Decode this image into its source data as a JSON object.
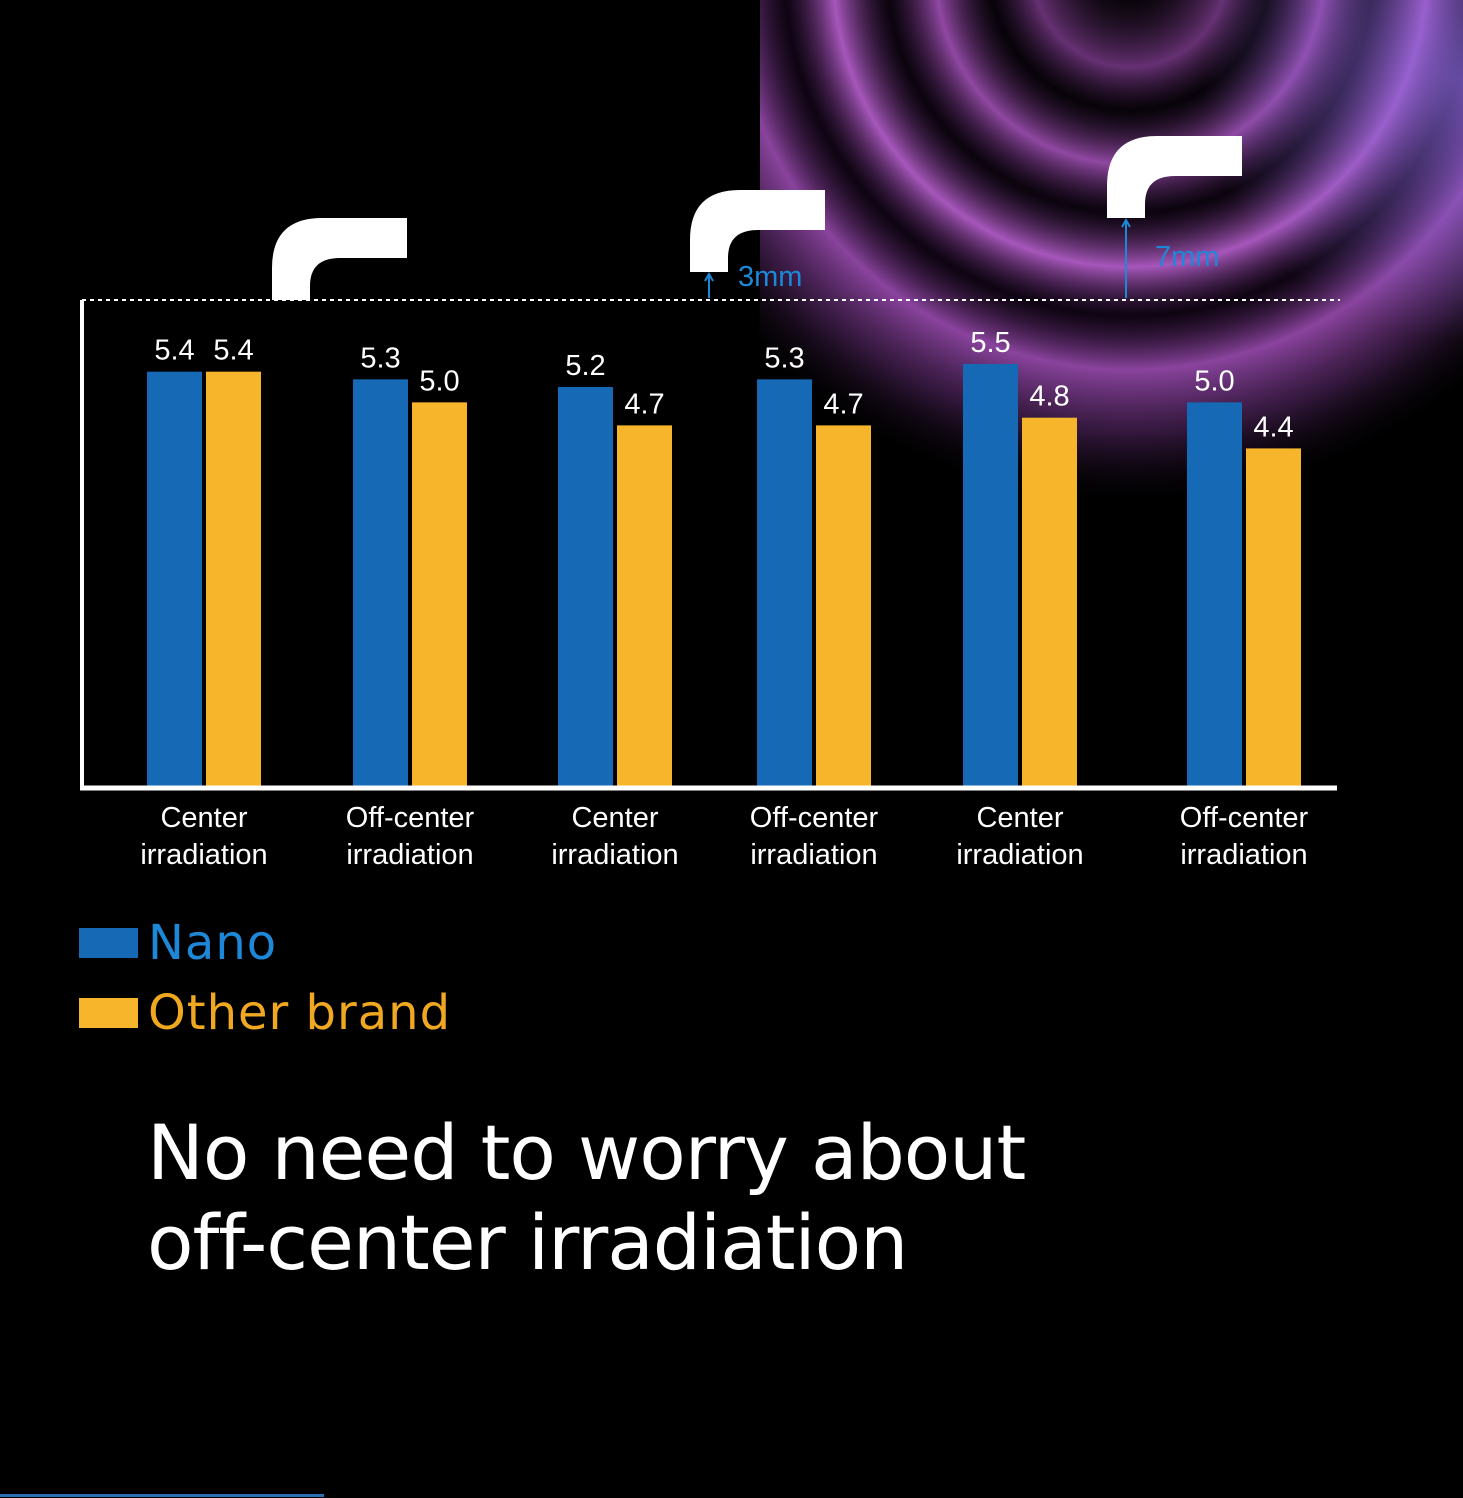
{
  "colors": {
    "background": "#000000",
    "nano": "#1569b5",
    "other_brand": "#f7b52c",
    "nano_text": "#1e88d8",
    "other_text": "#f0a820",
    "axis": "#ffffff",
    "glow": "#c064d8"
  },
  "chart_data": {
    "type": "bar",
    "categories": [
      "Center irradiation",
      "Off-center irradiation",
      "Center irradiation",
      "Off-center irradiation",
      "Center irradiation",
      "Off-center irradiation"
    ],
    "category_lines": [
      [
        "Center",
        "irradiation"
      ],
      [
        "Off-center",
        "irradiation"
      ],
      [
        "Center",
        "irradiation"
      ],
      [
        "Off-center",
        "irradiation"
      ],
      [
        "Center",
        "irradiation"
      ],
      [
        "Off-center",
        "irradiation"
      ]
    ],
    "series": [
      {
        "name": "Nano",
        "values": [
          5.4,
          5.3,
          5.2,
          5.3,
          5.5,
          5.0
        ],
        "labels": [
          "5.4",
          "5.3",
          "5.2",
          "5.3",
          "5.5",
          "5.0"
        ]
      },
      {
        "name": "Other brand",
        "values": [
          5.4,
          5.0,
          4.7,
          4.7,
          4.8,
          4.4
        ],
        "labels": [
          "5.4",
          "5.0",
          "4.7",
          "4.7",
          "4.8",
          "4.4"
        ]
      }
    ],
    "distance_annotations": [
      "",
      "3mm",
      "7mm"
    ],
    "legend_position": "bottom-left",
    "grid": false
  },
  "headline": {
    "line1": "No need to worry about",
    "line2": "off-center irradiation"
  }
}
